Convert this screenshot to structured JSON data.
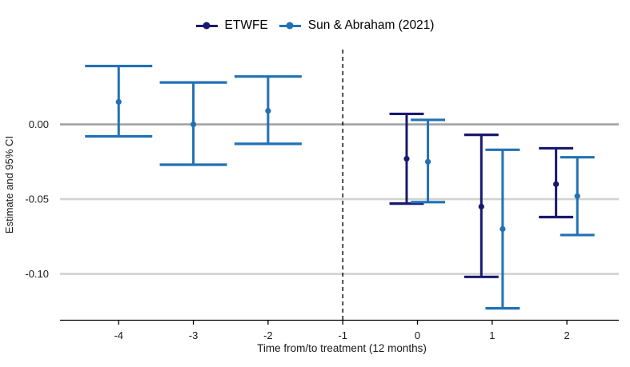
{
  "legend": {
    "items": [
      {
        "label": "ETWFE",
        "color": "#191970"
      },
      {
        "label": "Sun & Abraham (2021)",
        "color": "#2171b5"
      }
    ]
  },
  "chart_data": {
    "type": "errorbar",
    "title": "",
    "xlabel": "Time from/to treatment (12 months)",
    "ylabel": "Estimate and 95% CI",
    "x_ticks": [
      "-4",
      "-3",
      "-2",
      "-1",
      "0",
      "1",
      "2"
    ],
    "x_tick_values": [
      -4,
      -3,
      -2,
      -1,
      0,
      1,
      2
    ],
    "y_ticks": [
      {
        "value": 0.0,
        "label": "0.00"
      },
      {
        "value": -0.05,
        "label": "-0.05"
      },
      {
        "value": -0.1,
        "label": "-0.10"
      }
    ],
    "xlim": [
      -4.785,
      2.695
    ],
    "ylim": [
      -0.1307,
      0.05
    ],
    "vline_x": -1,
    "grid": "horizontal",
    "legend_position": "top",
    "colors": {
      "zero_gridline": "#a3a3a3",
      "gridline": "#d2d2d2",
      "vline": "#000000",
      "axis_line": "#000000",
      "tick_text": "#1a1a1a"
    },
    "series": [
      {
        "name": "ETWFE",
        "color": "#191970",
        "points": [
          {
            "x": 0,
            "estimate": -0.023,
            "ci_low": -0.053,
            "ci_high": 0.007,
            "x_offset": -0.145,
            "cap_width": 0.46
          },
          {
            "x": 1,
            "estimate": -0.055,
            "ci_low": -0.102,
            "ci_high": -0.007,
            "x_offset": -0.145,
            "cap_width": 0.46
          },
          {
            "x": 2,
            "estimate": -0.04,
            "ci_low": -0.062,
            "ci_high": -0.016,
            "x_offset": -0.145,
            "cap_width": 0.46
          }
        ]
      },
      {
        "name": "Sun & Abraham (2021)",
        "color": "#2171b5",
        "points": [
          {
            "x": -4,
            "estimate": 0.015,
            "ci_low": -0.008,
            "ci_high": 0.039,
            "x_offset": 0,
            "cap_width": 0.9
          },
          {
            "x": -3,
            "estimate": 0.0,
            "ci_low": -0.027,
            "ci_high": 0.028,
            "x_offset": 0,
            "cap_width": 0.9
          },
          {
            "x": -2,
            "estimate": 0.009,
            "ci_low": -0.013,
            "ci_high": 0.032,
            "x_offset": 0,
            "cap_width": 0.9
          },
          {
            "x": 0,
            "estimate": -0.025,
            "ci_low": -0.052,
            "ci_high": 0.003,
            "x_offset": 0.14,
            "cap_width": 0.46
          },
          {
            "x": 1,
            "estimate": -0.07,
            "ci_low": -0.123,
            "ci_high": -0.017,
            "x_offset": 0.14,
            "cap_width": 0.46
          },
          {
            "x": 2,
            "estimate": -0.048,
            "ci_low": -0.074,
            "ci_high": -0.022,
            "x_offset": 0.14,
            "cap_width": 0.46
          }
        ]
      }
    ]
  }
}
